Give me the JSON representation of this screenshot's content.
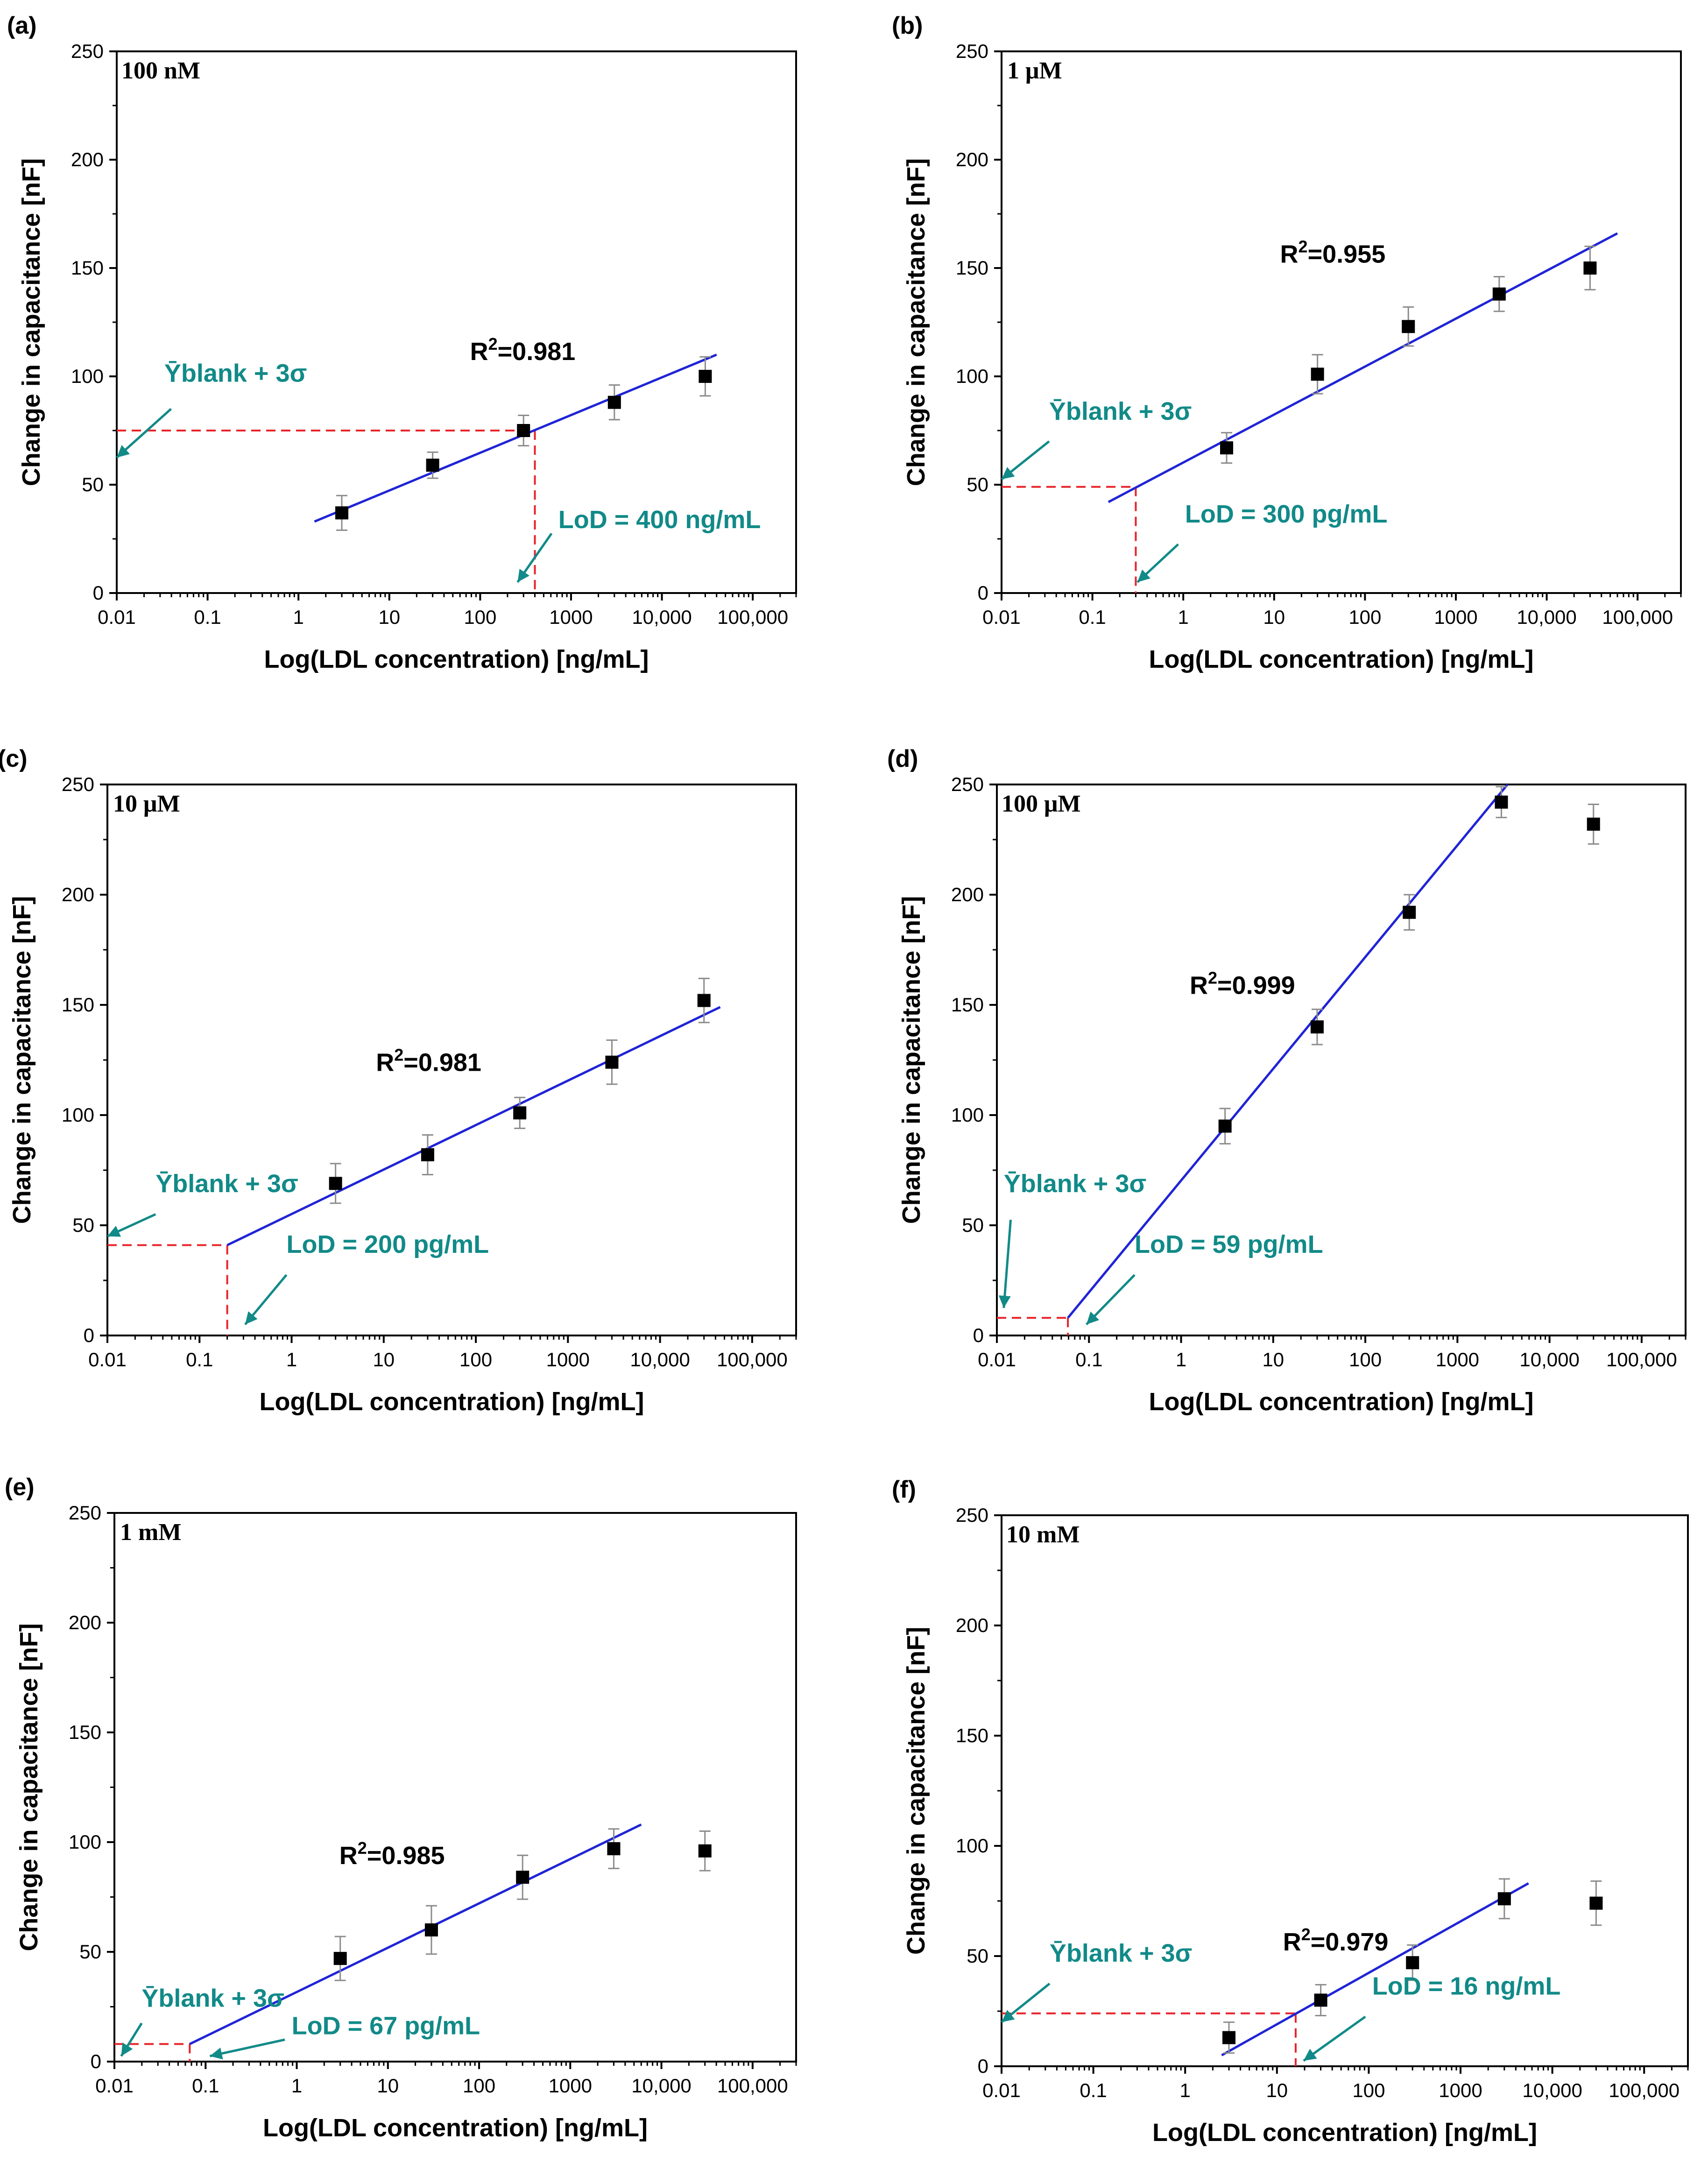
{
  "colors": {
    "fit": "#1f24d6",
    "threshold": "#e8232a",
    "annotation": "#118a88",
    "marker": "#000000",
    "errorbar": "#8c8c8c"
  },
  "axis_labels": {
    "xlabel": "Log(LDL concentration) [ng/mL]",
    "ylabel": "Change in capacitance [nF]",
    "xticks": [
      "0.01",
      "0.1",
      "1",
      "10",
      "100",
      "1000",
      "10,000",
      "100,000"
    ],
    "yticks": [
      "0",
      "50",
      "100",
      "150",
      "200",
      "250"
    ]
  },
  "chart_data": [
    {
      "type": "scatter",
      "panel": "(a)",
      "title": "100 nM",
      "xlabel": "Log(LDL concentration) [ng/mL]",
      "ylabel": "Change in capacitance [nF]",
      "xscale": "log",
      "xlim": [
        0.01,
        300000
      ],
      "ylim": [
        0,
        250
      ],
      "x": [
        3,
        30,
        300,
        3000,
        30000
      ],
      "y": [
        37,
        59,
        75,
        88,
        100
      ],
      "yerr": [
        8,
        6,
        7,
        8,
        9
      ],
      "fit": {
        "x": [
          1.5,
          40000
        ],
        "y": [
          33,
          110
        ]
      },
      "r2_label": "R²=0.981",
      "threshold": {
        "label": "Ȳblank + 3σ",
        "y": 75
      },
      "lod": {
        "label": "LoD = 400 ng/mL",
        "x": 400
      }
    },
    {
      "type": "scatter",
      "panel": "(b)",
      "title": "1 μM",
      "xlabel": "Log(LDL concentration) [ng/mL]",
      "ylabel": "Change in capacitance [nF]",
      "xscale": "log",
      "xlim": [
        0.01,
        300000
      ],
      "ylim": [
        0,
        250
      ],
      "x": [
        3,
        30,
        300,
        3000,
        30000
      ],
      "y": [
        67,
        101,
        123,
        138,
        150
      ],
      "yerr": [
        7,
        9,
        9,
        8,
        10
      ],
      "fit": {
        "x": [
          0.15,
          60000
        ],
        "y": [
          42,
          166
        ]
      },
      "r2_label": "R²=0.955",
      "threshold": {
        "label": "Ȳblank + 3σ",
        "y": 49
      },
      "lod": {
        "label": "LoD = 300 pg/mL",
        "x": 0.3
      }
    },
    {
      "type": "scatter",
      "panel": "(c)",
      "title": "10 μM",
      "xlabel": "Log(LDL concentration) [ng/mL]",
      "ylabel": "Change in capacitance [nF]",
      "xscale": "log",
      "xlim": [
        0.01,
        300000
      ],
      "ylim": [
        0,
        250
      ],
      "x": [
        3,
        30,
        300,
        3000,
        30000
      ],
      "y": [
        69,
        82,
        101,
        124,
        152
      ],
      "yerr": [
        9,
        9,
        7,
        10,
        10
      ],
      "fit": {
        "x": [
          0.2,
          45000
        ],
        "y": [
          41,
          149
        ]
      },
      "r2_label": "R²=0.981",
      "threshold": {
        "label": "Ȳblank + 3σ",
        "y": 41
      },
      "lod": {
        "label": "LoD = 200 pg/mL",
        "x": 0.2
      }
    },
    {
      "type": "scatter",
      "panel": "(d)",
      "title": "100 μM",
      "xlabel": "Log(LDL concentration) [ng/mL]",
      "ylabel": "Change in capacitance [nF]",
      "xscale": "log",
      "xlim": [
        0.01,
        300000
      ],
      "ylim": [
        0,
        250
      ],
      "x": [
        3,
        30,
        300,
        3000,
        30000
      ],
      "y": [
        95,
        140,
        192,
        242,
        232
      ],
      "yerr": [
        8,
        8,
        8,
        7,
        9
      ],
      "fit": {
        "x": [
          0.059,
          3500
        ],
        "y": [
          8,
          250
        ]
      },
      "r2_label": "R²=0.999",
      "threshold": {
        "label": "Ȳblank + 3σ",
        "y": 8
      },
      "lod": {
        "label": "LoD = 59 pg/mL",
        "x": 0.059
      }
    },
    {
      "type": "scatter",
      "panel": "(e)",
      "title": "1 mM",
      "xlabel": "Log(LDL concentration) [ng/mL]",
      "ylabel": "Change in capacitance [nF]",
      "xscale": "log",
      "xlim": [
        0.01,
        300000
      ],
      "ylim": [
        0,
        250
      ],
      "x": [
        3,
        30,
        300,
        3000,
        30000
      ],
      "y": [
        47,
        60,
        84,
        97,
        96
      ],
      "yerr": [
        10,
        11,
        10,
        9,
        9
      ],
      "fit": {
        "x": [
          0.067,
          6000
        ],
        "y": [
          8,
          108
        ]
      },
      "r2_label": "R²=0.985",
      "threshold": {
        "label": "Ȳblank + 3σ",
        "y": 8
      },
      "lod": {
        "label": "LoD = 67 pg/mL",
        "x": 0.067
      }
    },
    {
      "type": "scatter",
      "panel": "(f)",
      "title": "10 mM",
      "xlabel": "Log(LDL concentration) [ng/mL]",
      "ylabel": "Change in capacitance [nF]",
      "xscale": "log",
      "xlim": [
        0.01,
        300000
      ],
      "ylim": [
        0,
        250
      ],
      "x": [
        3,
        30,
        300,
        3000,
        30000
      ],
      "y": [
        13,
        30,
        47,
        76,
        74
      ],
      "yerr": [
        7,
        7,
        8,
        9,
        10
      ],
      "fit": {
        "x": [
          2.5,
          5500
        ],
        "y": [
          5,
          83
        ]
      },
      "r2_label": "R²=0.979",
      "threshold": {
        "label": "Ȳblank + 3σ",
        "y": 24
      },
      "lod": {
        "label": "LoD = 16 ng/mL",
        "x": 16
      }
    }
  ]
}
